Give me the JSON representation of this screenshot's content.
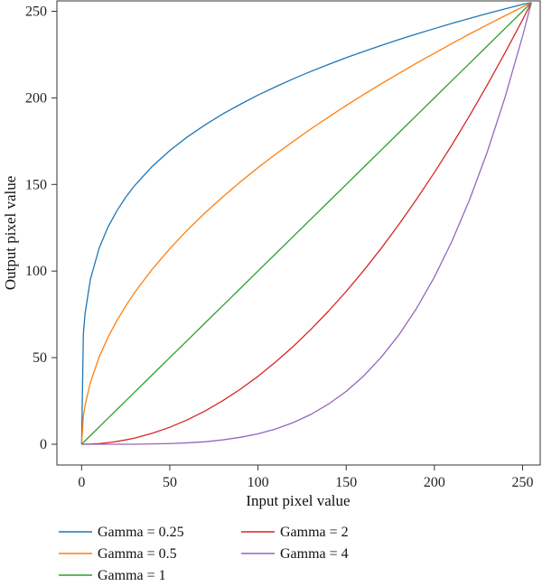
{
  "chart_data": {
    "type": "line",
    "xlabel": "Input pixel value",
    "ylabel": "Output pixel value",
    "xlim": [
      -14,
      260
    ],
    "ylim": [
      -12,
      256
    ],
    "xticks": [
      0,
      50,
      100,
      150,
      200,
      250
    ],
    "yticks": [
      0,
      50,
      100,
      150,
      200,
      250
    ],
    "grid": false,
    "legend_position": "bottom",
    "x": [
      0,
      1,
      2,
      5,
      10,
      15,
      20,
      25,
      30,
      40,
      50,
      60,
      70,
      80,
      90,
      100,
      110,
      120,
      130,
      140,
      150,
      160,
      170,
      180,
      190,
      200,
      210,
      220,
      230,
      240,
      250,
      255
    ],
    "series": [
      {
        "name": "Gamma = 0.25",
        "color": "#1f77b4",
        "gamma": 0.25,
        "values": [
          0,
          63.7,
          75.8,
          95.3,
          113.4,
          125.5,
          134.8,
          142.6,
          149.3,
          160.4,
          169.6,
          177.5,
          184.4,
          190.7,
          196.3,
          201.6,
          206.4,
          211.0,
          215.3,
          219.3,
          223.2,
          226.8,
          230.3,
          233.7,
          236.9,
          240.0,
          243.0,
          245.9,
          248.7,
          251.4,
          254.0,
          255.0
        ]
      },
      {
        "name": "Gamma = 0.5",
        "color": "#ff7f0e",
        "gamma": 0.5,
        "values": [
          0,
          16.0,
          22.6,
          35.7,
          50.5,
          61.8,
          71.4,
          79.8,
          87.5,
          101.0,
          112.9,
          123.7,
          133.6,
          142.8,
          151.5,
          159.7,
          167.5,
          174.9,
          182.1,
          188.9,
          195.6,
          202.0,
          208.2,
          214.2,
          220.1,
          225.8,
          231.4,
          236.9,
          242.2,
          247.4,
          252.5,
          255.0
        ]
      },
      {
        "name": "Gamma = 1",
        "color": "#2ca02c",
        "gamma": 1,
        "values": [
          0,
          1,
          2,
          5,
          10,
          15,
          20,
          25,
          30,
          40,
          50,
          60,
          70,
          80,
          90,
          100,
          110,
          120,
          130,
          140,
          150,
          160,
          170,
          180,
          190,
          200,
          210,
          220,
          230,
          240,
          250,
          255
        ]
      },
      {
        "name": "Gamma = 2",
        "color": "#d62728",
        "gamma": 2,
        "values": [
          0,
          0.0,
          0.0,
          0.1,
          0.4,
          0.9,
          1.6,
          2.5,
          3.5,
          6.3,
          9.8,
          14.1,
          19.2,
          25.1,
          31.8,
          39.2,
          47.5,
          56.5,
          66.3,
          76.9,
          88.2,
          100.4,
          113.3,
          127.1,
          141.6,
          156.9,
          172.9,
          189.8,
          207.5,
          225.9,
          245.1,
          255.0
        ]
      },
      {
        "name": "Gamma = 4",
        "color": "#9467bd",
        "gamma": 4,
        "values": [
          0,
          0.0,
          0.0,
          0.0,
          0.0,
          0.0,
          0.0,
          0.0,
          0.0,
          0.2,
          0.4,
          0.8,
          1.4,
          2.5,
          4.0,
          6.0,
          8.8,
          12.5,
          17.2,
          23.2,
          30.5,
          39.5,
          50.4,
          63.3,
          78.6,
          96.5,
          117.3,
          141.3,
          168.8,
          200.1,
          235.6,
          255.0
        ]
      }
    ]
  }
}
